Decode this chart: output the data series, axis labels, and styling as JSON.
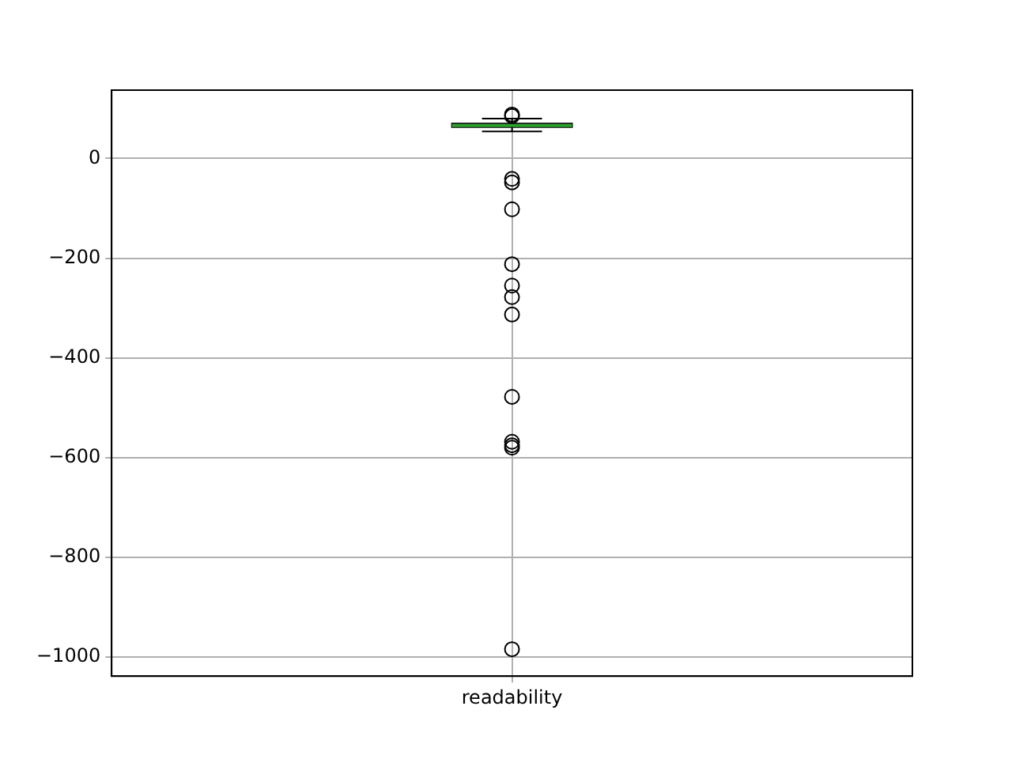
{
  "chart_data": {
    "type": "box",
    "categories": [
      "readability"
    ],
    "boxes": [
      {
        "low": 54,
        "q1": 63,
        "median": 66,
        "q3": 70,
        "high": 80,
        "outliers": [
          88,
          85,
          -41,
          -48,
          -102,
          -212,
          -255,
          -278,
          -313,
          -478,
          -568,
          -575,
          -580,
          -984
        ]
      }
    ],
    "color": "#000000",
    "ylim": [
      -1038,
      137
    ],
    "yticks": [
      -1000,
      -800,
      -600,
      -400,
      -200,
      0
    ],
    "grid": true,
    "marker": "circle"
  }
}
